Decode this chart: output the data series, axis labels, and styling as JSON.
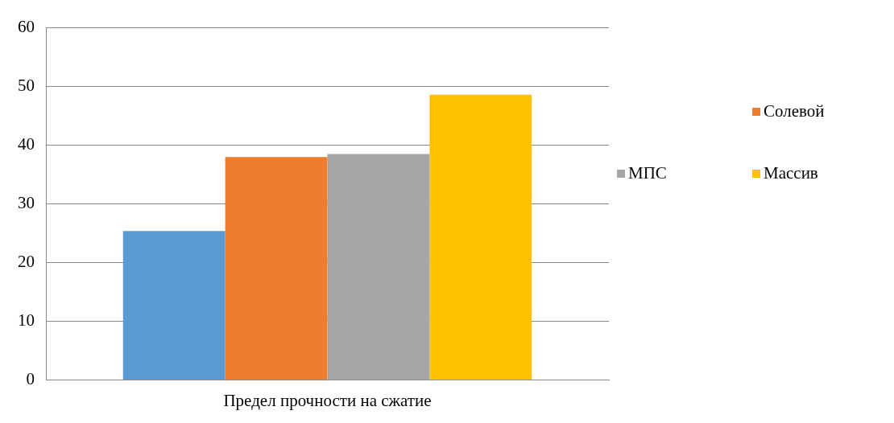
{
  "chart_data": {
    "type": "bar",
    "categories": [
      "Предел прочности на сжатие"
    ],
    "series": [
      {
        "color": "#5b9bd5",
        "values": [
          25.4
        ]
      },
      {
        "name": "Солевой",
        "color": "#ed7d31",
        "values": [
          38.0
        ]
      },
      {
        "name": "МПС",
        "color": "#a5a5a5",
        "values": [
          38.5
        ]
      },
      {
        "name": "Массив",
        "color": "#ffc000",
        "values": [
          48.6
        ]
      }
    ],
    "ylim": [
      0,
      60
    ],
    "yticks": [
      0,
      10,
      20,
      30,
      40,
      50,
      60
    ],
    "grid": "y",
    "legend": "right"
  }
}
